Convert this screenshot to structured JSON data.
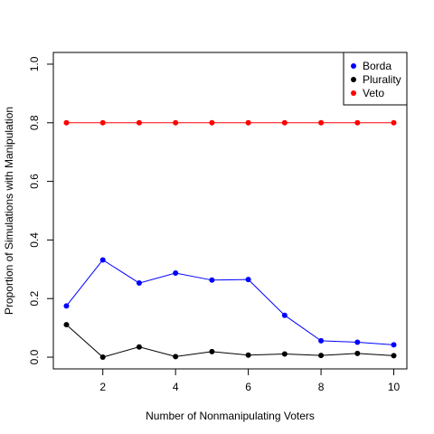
{
  "chart_data": {
    "type": "line",
    "title": "",
    "xlabel": "Number of Nonmanipulating Voters",
    "ylabel": "Proportion of Simulations with Manipulation",
    "xlim": [
      0.64,
      10.36
    ],
    "ylim": [
      -0.04,
      1.04
    ],
    "x_ticks": [
      2,
      4,
      6,
      8,
      10
    ],
    "y_ticks": [
      "0.0",
      "0.2",
      "0.4",
      "0.6",
      "0.8",
      "1.0"
    ],
    "x": [
      1,
      2,
      3,
      4,
      5,
      6,
      7,
      8,
      9,
      10
    ],
    "grid": false,
    "legend_position": "top-right",
    "series": [
      {
        "name": "Borda",
        "color": "#0000ff",
        "values": [
          0.175,
          0.332,
          0.253,
          0.287,
          0.263,
          0.265,
          0.143,
          0.056,
          0.051,
          0.042
        ]
      },
      {
        "name": "Plurality",
        "color": "#000000",
        "values": [
          0.111,
          0.0,
          0.035,
          0.002,
          0.019,
          0.007,
          0.011,
          0.006,
          0.013,
          0.005
        ]
      },
      {
        "name": "Veto",
        "color": "#ff0000",
        "values": [
          0.8,
          0.8,
          0.8,
          0.8,
          0.8,
          0.8,
          0.8,
          0.8,
          0.8,
          0.8
        ]
      }
    ]
  }
}
